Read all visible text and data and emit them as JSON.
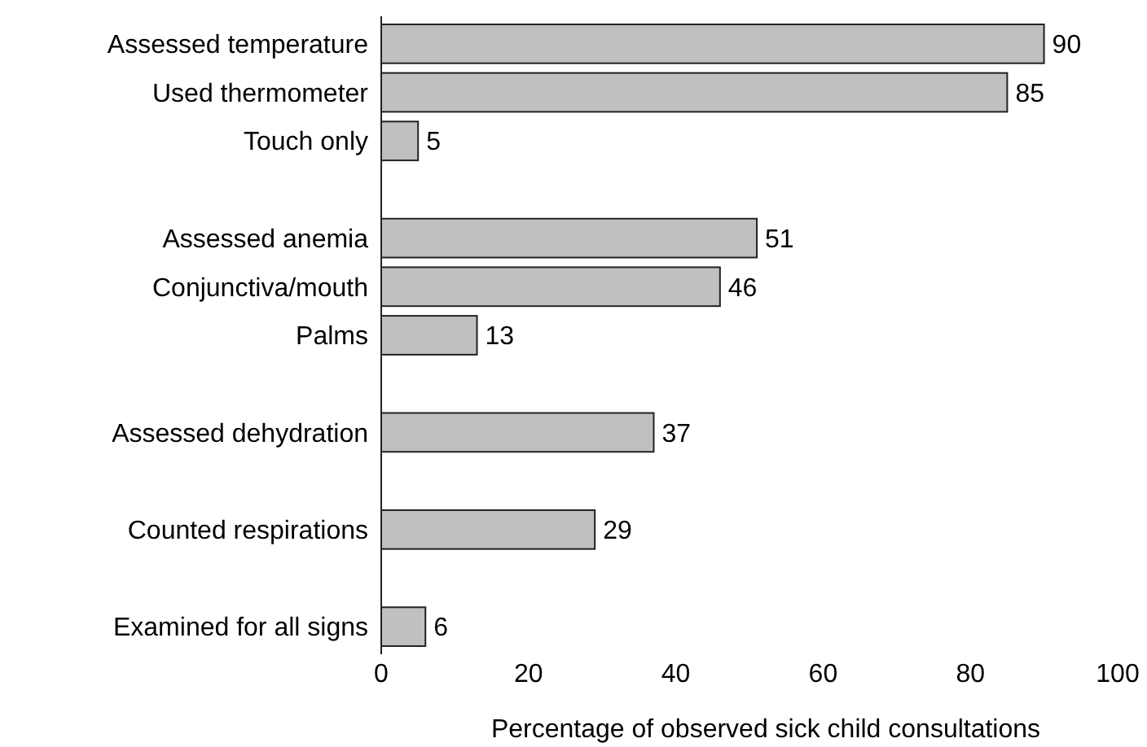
{
  "chart_data": {
    "type": "bar",
    "orientation": "horizontal",
    "xlabel": "Percentage of observed sick child consultations",
    "categories": [
      "Assessed temperature",
      "Used thermometer",
      "Touch only",
      null,
      "Assessed anemia",
      "Conjunctiva/mouth",
      "Palms",
      null,
      "Assessed dehydration",
      null,
      "Counted respirations",
      null,
      "Examined for all signs"
    ],
    "values": [
      90,
      85,
      5,
      null,
      51,
      46,
      13,
      null,
      37,
      null,
      29,
      null,
      6
    ],
    "color": "#c0c0c0",
    "data_labels": true,
    "xlim": [
      0,
      100
    ],
    "xticks": [
      0,
      20,
      40,
      60,
      80,
      100
    ],
    "grid": false
  }
}
